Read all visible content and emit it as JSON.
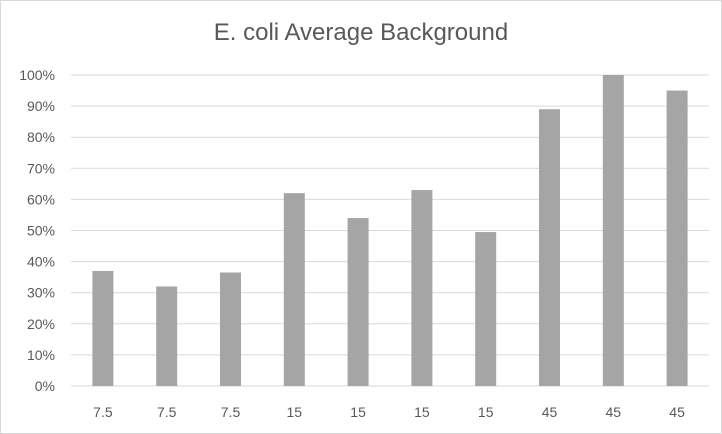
{
  "chart_data": {
    "type": "bar",
    "title": "E. coli Average Background",
    "xlabel": "",
    "ylabel": "",
    "categories": [
      "7.5",
      "7.5",
      "7.5",
      "15",
      "15",
      "15",
      "15",
      "45",
      "45",
      "45"
    ],
    "values": [
      37,
      32,
      36.5,
      62,
      54,
      63,
      49.5,
      89,
      100,
      95
    ],
    "ylim": [
      0,
      100
    ],
    "y_ticks": [
      "0%",
      "10%",
      "20%",
      "30%",
      "40%",
      "50%",
      "60%",
      "70%",
      "80%",
      "90%",
      "100%"
    ],
    "grid": true,
    "legend": "none",
    "colors": {
      "bar": "#a5a5a5",
      "grid": "#d9d9d9",
      "text": "#595959"
    }
  }
}
